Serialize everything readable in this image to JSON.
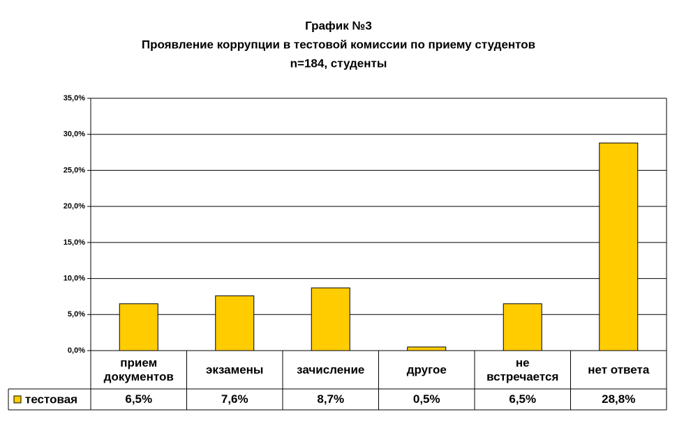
{
  "chart_data": {
    "type": "bar",
    "title": [
      "График №3",
      "Проявление коррупции в тестовой комиссии по приему студентов",
      "n=184, студенты"
    ],
    "categories": [
      "прием документов",
      "экзамены",
      "зачисление",
      "другое",
      "не встречается",
      "нет ответа"
    ],
    "series": [
      {
        "name": "тестовая",
        "color": "#ffcc00",
        "values": [
          6.5,
          7.6,
          8.7,
          0.5,
          6.5,
          28.8
        ],
        "value_labels": [
          "6,5%",
          "7,6%",
          "8,7%",
          "0,5%",
          "6,5%",
          "28,8%"
        ]
      }
    ],
    "ylim": [
      0,
      35
    ],
    "yticks": [
      {
        "value": 0,
        "label": "0,0%"
      },
      {
        "value": 5,
        "label": "5,0%"
      },
      {
        "value": 10,
        "label": "10,0%"
      },
      {
        "value": 15,
        "label": "15,0%"
      },
      {
        "value": 20,
        "label": "20,0%"
      },
      {
        "value": 25,
        "label": "25,0%"
      },
      {
        "value": 30,
        "label": "30,0%"
      },
      {
        "value": 35,
        "label": "35,0%"
      }
    ],
    "grid": true
  }
}
